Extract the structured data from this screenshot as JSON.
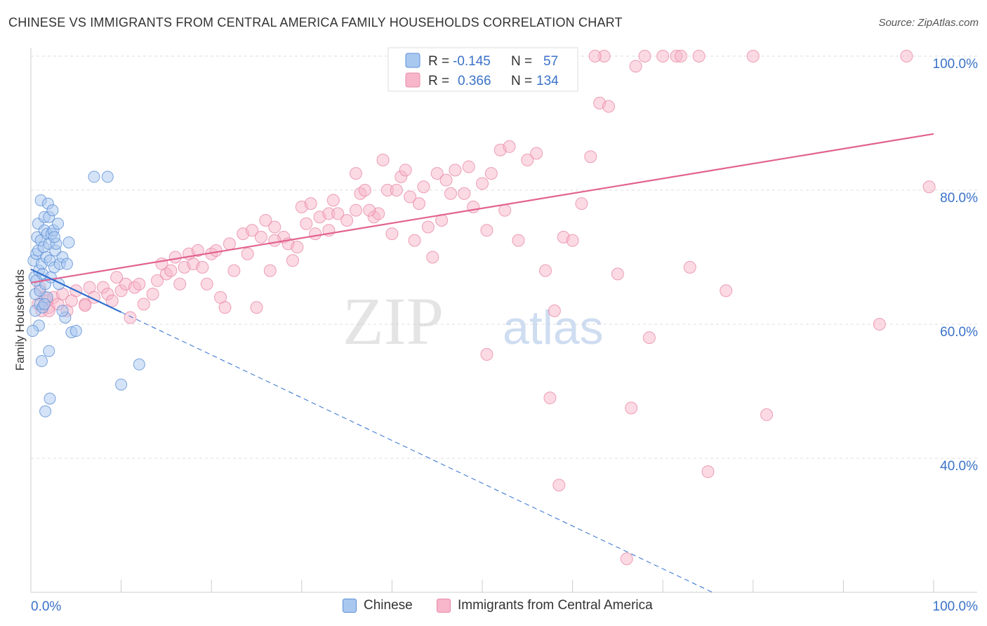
{
  "title": "CHINESE VS IMMIGRANTS FROM CENTRAL AMERICA FAMILY HOUSEHOLDS CORRELATION CHART",
  "source": "Source: ZipAtlas.com",
  "watermark": {
    "zip": "ZIP",
    "atlas": "atlas"
  },
  "colors": {
    "blue_fill": "#a9c8f0",
    "blue_edge": "#5b8fd6",
    "blue_line": "#2f6fd0",
    "pink_fill": "#f7b6ca",
    "pink_edge": "#e88aa8",
    "pink_line": "#e2628f",
    "axis_text": "#3a72c8",
    "grid": "#dddddd"
  },
  "legend_box": {
    "rows": [
      {
        "r_label": "R =",
        "r_value": "-0.145",
        "n_label": "N =",
        "n_value": "57",
        "color": "blue"
      },
      {
        "r_label": "R =",
        "r_value": "0.366",
        "n_label": "N =",
        "n_value": "134",
        "color": "pink"
      }
    ]
  },
  "legend_bottom": [
    {
      "label": "Chinese",
      "color": "blue"
    },
    {
      "label": "Immigrants from Central America",
      "color": "pink"
    }
  ],
  "chart_data": {
    "type": "scatter",
    "ylabel": "Family Households",
    "xlabel": "",
    "xlim": [
      0,
      100
    ],
    "ylim": [
      20,
      100
    ],
    "x_tick_labels": [
      {
        "value": 0,
        "label": "0.0%"
      },
      {
        "value": 100,
        "label": "100.0%"
      }
    ],
    "y_tick_labels": [
      {
        "value": 40,
        "label": "40.0%"
      },
      {
        "value": 60,
        "label": "60.0%"
      },
      {
        "value": 80,
        "label": "80.0%"
      },
      {
        "value": 100,
        "label": "100.0%"
      }
    ],
    "grid": true,
    "series": [
      {
        "name": "Chinese",
        "color": "blue",
        "trend": {
          "x": [
            0,
            10
          ],
          "y": [
            68.2,
            61.8
          ],
          "dashed_to": [
            75.5,
            20.0
          ]
        },
        "points": [
          [
            0.3,
            69.5
          ],
          [
            0.4,
            67.0
          ],
          [
            0.5,
            64.5
          ],
          [
            0.5,
            62.0
          ],
          [
            0.6,
            70.5
          ],
          [
            0.6,
            66.5
          ],
          [
            0.7,
            73.0
          ],
          [
            0.8,
            75.0
          ],
          [
            0.8,
            71.0
          ],
          [
            0.9,
            68.0
          ],
          [
            1.0,
            65.0
          ],
          [
            1.0,
            63.0
          ],
          [
            1.1,
            72.5
          ],
          [
            1.1,
            78.5
          ],
          [
            1.2,
            69.0
          ],
          [
            1.3,
            67.5
          ],
          [
            1.4,
            71.5
          ],
          [
            1.5,
            74.0
          ],
          [
            1.5,
            76.0
          ],
          [
            1.6,
            66.0
          ],
          [
            1.7,
            70.0
          ],
          [
            1.8,
            73.5
          ],
          [
            1.9,
            78.0
          ],
          [
            2.0,
            76.0
          ],
          [
            2.0,
            72.0
          ],
          [
            2.1,
            69.5
          ],
          [
            2.2,
            67.0
          ],
          [
            2.3,
            73.5
          ],
          [
            2.4,
            77.0
          ],
          [
            2.5,
            74.0
          ],
          [
            2.6,
            68.5
          ],
          [
            2.7,
            71.0
          ],
          [
            2.8,
            72.0
          ],
          [
            3.0,
            75.0
          ],
          [
            3.1,
            66.0
          ],
          [
            3.2,
            69.0
          ],
          [
            3.5,
            70.0
          ],
          [
            3.8,
            61.0
          ],
          [
            4.0,
            69.0
          ],
          [
            1.2,
            54.5
          ],
          [
            1.6,
            47.0
          ],
          [
            2.1,
            48.9
          ],
          [
            4.5,
            58.8
          ],
          [
            5.0,
            59.0
          ],
          [
            7.0,
            82.0
          ],
          [
            8.5,
            82.0
          ],
          [
            10.0,
            51.0
          ],
          [
            12.0,
            54.0
          ],
          [
            1.3,
            62.5
          ],
          [
            2.0,
            56.0
          ],
          [
            3.5,
            62.0
          ],
          [
            1.8,
            64.0
          ],
          [
            0.9,
            59.8
          ],
          [
            2.6,
            73.0
          ],
          [
            1.5,
            63.0
          ],
          [
            0.2,
            59.0
          ],
          [
            4.2,
            72.2
          ]
        ]
      },
      {
        "name": "Immigrants from Central America",
        "color": "pink",
        "trend": {
          "x": [
            0,
            100
          ],
          "y": [
            66.2,
            88.4
          ]
        },
        "points": [
          [
            0.8,
            63.0
          ],
          [
            1.0,
            65.5
          ],
          [
            1.2,
            62.0
          ],
          [
            1.5,
            64.0
          ],
          [
            1.8,
            63.5
          ],
          [
            2.0,
            62.5
          ],
          [
            2.5,
            64.0
          ],
          [
            3.0,
            63.0
          ],
          [
            3.5,
            64.5
          ],
          [
            4.0,
            62.0
          ],
          [
            5.0,
            65.0
          ],
          [
            6.0,
            63.0
          ],
          [
            6.5,
            65.5
          ],
          [
            7.0,
            64.0
          ],
          [
            8.0,
            65.5
          ],
          [
            8.5,
            64.5
          ],
          [
            9.0,
            63.5
          ],
          [
            10.0,
            65.0
          ],
          [
            10.5,
            66.0
          ],
          [
            11.0,
            61.0
          ],
          [
            11.5,
            65.5
          ],
          [
            12.0,
            66.0
          ],
          [
            12.5,
            63.0
          ],
          [
            13.5,
            64.5
          ],
          [
            14.0,
            66.5
          ],
          [
            15.0,
            67.5
          ],
          [
            15.5,
            68.0
          ],
          [
            16.0,
            70.0
          ],
          [
            16.5,
            66.0
          ],
          [
            17.0,
            68.5
          ],
          [
            17.5,
            70.5
          ],
          [
            18.0,
            69.0
          ],
          [
            18.5,
            71.0
          ],
          [
            19.0,
            68.5
          ],
          [
            20.0,
            70.5
          ],
          [
            20.5,
            71.0
          ],
          [
            21.0,
            64.0
          ],
          [
            21.5,
            62.5
          ],
          [
            22.0,
            72.0
          ],
          [
            22.5,
            68.0
          ],
          [
            23.5,
            73.5
          ],
          [
            24.0,
            70.5
          ],
          [
            24.5,
            74.0
          ],
          [
            25.0,
            62.5
          ],
          [
            25.5,
            73.0
          ],
          [
            26.0,
            75.5
          ],
          [
            27.0,
            74.5
          ],
          [
            28.0,
            73.0
          ],
          [
            28.5,
            72.0
          ],
          [
            29.0,
            69.5
          ],
          [
            30.0,
            77.5
          ],
          [
            30.5,
            75.0
          ],
          [
            31.0,
            78.0
          ],
          [
            32.0,
            76.0
          ],
          [
            33.0,
            76.5
          ],
          [
            33.5,
            78.5
          ],
          [
            34.0,
            76.5
          ],
          [
            35.0,
            75.5
          ],
          [
            36.0,
            77.0
          ],
          [
            36.5,
            79.5
          ],
          [
            37.0,
            80.0
          ],
          [
            38.0,
            76.0
          ],
          [
            38.5,
            76.5
          ],
          [
            39.0,
            84.5
          ],
          [
            39.5,
            80.0
          ],
          [
            40.0,
            73.5
          ],
          [
            41.0,
            82.0
          ],
          [
            41.5,
            83.0
          ],
          [
            42.0,
            79.0
          ],
          [
            43.0,
            78.0
          ],
          [
            43.5,
            80.5
          ],
          [
            44.0,
            74.5
          ],
          [
            45.0,
            82.5
          ],
          [
            45.5,
            75.5
          ],
          [
            46.0,
            81.5
          ],
          [
            47.0,
            83.0
          ],
          [
            48.0,
            79.5
          ],
          [
            49.0,
            77.5
          ],
          [
            50.0,
            81.0
          ],
          [
            50.5,
            74.0
          ],
          [
            51.0,
            82.5
          ],
          [
            52.0,
            86.0
          ],
          [
            53.0,
            86.5
          ],
          [
            54.0,
            72.5
          ],
          [
            55.0,
            84.5
          ],
          [
            56.0,
            85.5
          ],
          [
            57.0,
            68.0
          ],
          [
            58.0,
            62.0
          ],
          [
            59.0,
            73.0
          ],
          [
            60.0,
            72.5
          ],
          [
            61.0,
            78.0
          ],
          [
            62.0,
            85.0
          ],
          [
            63.0,
            93.0
          ],
          [
            64.0,
            92.5
          ],
          [
            65.0,
            67.5
          ],
          [
            66.5,
            47.5
          ],
          [
            67.0,
            98.5
          ],
          [
            68.0,
            100.0
          ],
          [
            70.0,
            100.0
          ],
          [
            71.5,
            100.0
          ],
          [
            72.0,
            100.0
          ],
          [
            74.0,
            100.0
          ],
          [
            75.0,
            38.0
          ],
          [
            77.0,
            65.0
          ],
          [
            80.0,
            100.0
          ],
          [
            81.5,
            46.5
          ],
          [
            94.0,
            60.0
          ],
          [
            97.0,
            100.0
          ],
          [
            99.5,
            80.5
          ],
          [
            2.0,
            62.0
          ],
          [
            4.5,
            63.5
          ],
          [
            6.0,
            62.8
          ],
          [
            9.5,
            67.0
          ],
          [
            14.5,
            69.0
          ],
          [
            19.5,
            66.0
          ],
          [
            26.5,
            68.0
          ],
          [
            31.5,
            73.5
          ],
          [
            37.5,
            77.0
          ],
          [
            42.5,
            72.5
          ],
          [
            46.5,
            79.5
          ],
          [
            48.5,
            83.5
          ],
          [
            52.5,
            77.0
          ],
          [
            55.5,
            96.0
          ],
          [
            57.5,
            49.0
          ],
          [
            58.5,
            36.0
          ],
          [
            63.5,
            100.0
          ],
          [
            66.0,
            25.0
          ],
          [
            68.5,
            58.0
          ],
          [
            73.0,
            68.5
          ],
          [
            57.0,
            100.0
          ],
          [
            59.5,
            100.0
          ],
          [
            62.5,
            100.0
          ],
          [
            50.5,
            55.5
          ],
          [
            44.5,
            70.0
          ],
          [
            40.5,
            80.0
          ],
          [
            36.0,
            82.5
          ],
          [
            33.0,
            74.0
          ],
          [
            29.5,
            71.5
          ],
          [
            27.0,
            72.5
          ]
        ]
      }
    ]
  }
}
